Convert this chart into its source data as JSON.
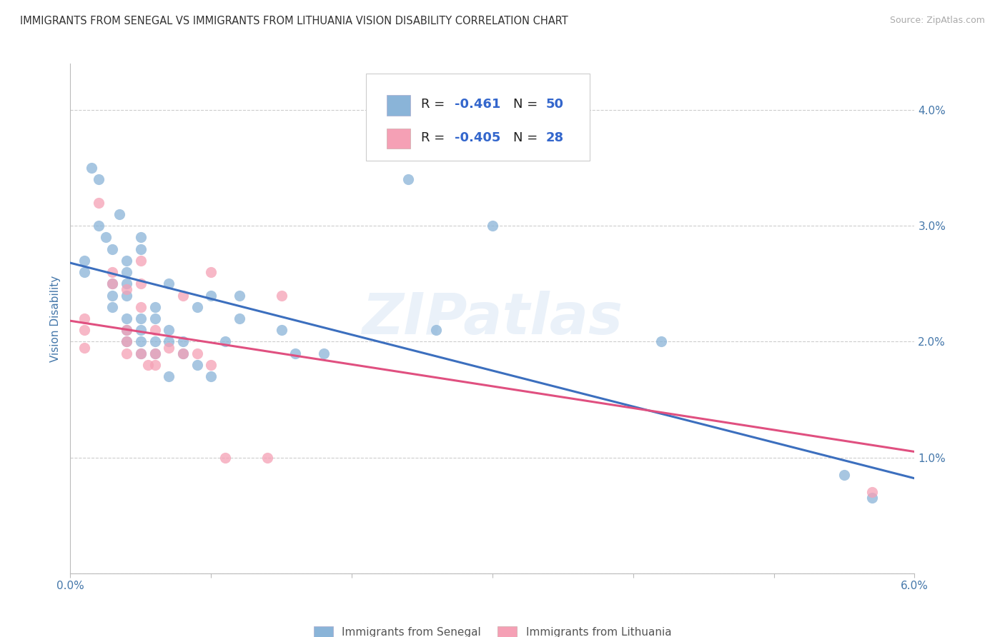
{
  "title": "IMMIGRANTS FROM SENEGAL VS IMMIGRANTS FROM LITHUANIA VISION DISABILITY CORRELATION CHART",
  "source": "Source: ZipAtlas.com",
  "ylabel": "Vision Disability",
  "xlim": [
    0.0,
    0.06
  ],
  "ylim": [
    0.0,
    0.044
  ],
  "yticks": [
    0.0,
    0.01,
    0.02,
    0.03,
    0.04
  ],
  "ytick_labels": [
    "",
    "1.0%",
    "2.0%",
    "3.0%",
    "4.0%"
  ],
  "xticks": [
    0.0,
    0.01,
    0.02,
    0.03,
    0.04,
    0.05,
    0.06
  ],
  "xtick_labels": [
    "0.0%",
    "",
    "",
    "",
    "",
    "",
    "6.0%"
  ],
  "senegal_color": "#8ab4d8",
  "lithuania_color": "#f5a0b5",
  "senegal_line_color": "#3c6fbe",
  "lithuania_line_color": "#e05080",
  "watermark": "ZIPatlas",
  "title_color": "#333333",
  "axis_label_color": "#4477aa",
  "tick_color": "#4477aa",
  "grid_color": "#cccccc",
  "legend_R_color": "#000000",
  "legend_val_color": "#3366cc",
  "senegal_points": [
    [
      0.001,
      0.027
    ],
    [
      0.001,
      0.026
    ],
    [
      0.0015,
      0.035
    ],
    [
      0.002,
      0.034
    ],
    [
      0.002,
      0.03
    ],
    [
      0.0025,
      0.029
    ],
    [
      0.003,
      0.028
    ],
    [
      0.003,
      0.025
    ],
    [
      0.003,
      0.024
    ],
    [
      0.003,
      0.023
    ],
    [
      0.0035,
      0.031
    ],
    [
      0.004,
      0.027
    ],
    [
      0.004,
      0.026
    ],
    [
      0.004,
      0.025
    ],
    [
      0.004,
      0.024
    ],
    [
      0.004,
      0.022
    ],
    [
      0.004,
      0.021
    ],
    [
      0.004,
      0.02
    ],
    [
      0.005,
      0.029
    ],
    [
      0.005,
      0.028
    ],
    [
      0.005,
      0.022
    ],
    [
      0.005,
      0.021
    ],
    [
      0.005,
      0.02
    ],
    [
      0.005,
      0.019
    ],
    [
      0.006,
      0.023
    ],
    [
      0.006,
      0.022
    ],
    [
      0.006,
      0.02
    ],
    [
      0.006,
      0.019
    ],
    [
      0.007,
      0.025
    ],
    [
      0.007,
      0.021
    ],
    [
      0.007,
      0.02
    ],
    [
      0.007,
      0.017
    ],
    [
      0.008,
      0.02
    ],
    [
      0.008,
      0.019
    ],
    [
      0.009,
      0.023
    ],
    [
      0.009,
      0.018
    ],
    [
      0.01,
      0.024
    ],
    [
      0.01,
      0.017
    ],
    [
      0.011,
      0.02
    ],
    [
      0.012,
      0.024
    ],
    [
      0.012,
      0.022
    ],
    [
      0.015,
      0.021
    ],
    [
      0.016,
      0.019
    ],
    [
      0.018,
      0.019
    ],
    [
      0.024,
      0.034
    ],
    [
      0.026,
      0.021
    ],
    [
      0.03,
      0.03
    ],
    [
      0.042,
      0.02
    ],
    [
      0.055,
      0.0085
    ],
    [
      0.057,
      0.0065
    ]
  ],
  "lithuania_points": [
    [
      0.001,
      0.022
    ],
    [
      0.001,
      0.021
    ],
    [
      0.001,
      0.0195
    ],
    [
      0.002,
      0.032
    ],
    [
      0.003,
      0.026
    ],
    [
      0.003,
      0.025
    ],
    [
      0.004,
      0.0245
    ],
    [
      0.004,
      0.021
    ],
    [
      0.004,
      0.02
    ],
    [
      0.004,
      0.019
    ],
    [
      0.005,
      0.027
    ],
    [
      0.005,
      0.025
    ],
    [
      0.005,
      0.023
    ],
    [
      0.005,
      0.019
    ],
    [
      0.0055,
      0.018
    ],
    [
      0.006,
      0.021
    ],
    [
      0.006,
      0.019
    ],
    [
      0.006,
      0.018
    ],
    [
      0.007,
      0.0195
    ],
    [
      0.008,
      0.024
    ],
    [
      0.008,
      0.019
    ],
    [
      0.009,
      0.019
    ],
    [
      0.01,
      0.026
    ],
    [
      0.01,
      0.018
    ],
    [
      0.011,
      0.01
    ],
    [
      0.014,
      0.01
    ],
    [
      0.015,
      0.024
    ],
    [
      0.057,
      0.007
    ]
  ],
  "senegal_line": {
    "x": [
      0.0,
      0.06
    ],
    "y": [
      0.0268,
      0.0082
    ]
  },
  "lithuania_line": {
    "x": [
      0.0,
      0.06
    ],
    "y": [
      0.0218,
      0.0105
    ]
  }
}
